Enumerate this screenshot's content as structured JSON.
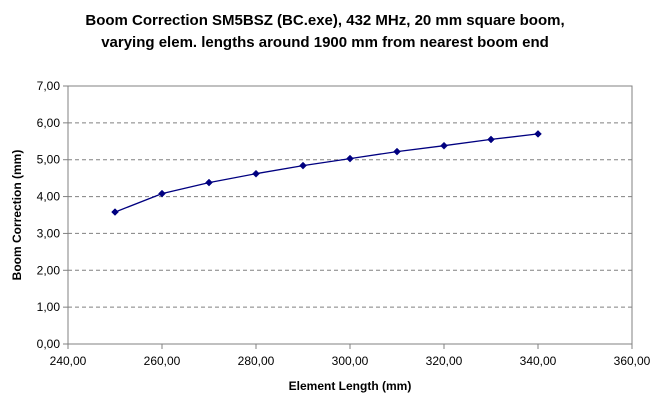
{
  "chart_data": {
    "type": "line",
    "title_lines": [
      "Boom Correction SM5BSZ (BC.exe), 432 MHz, 20 mm square boom,",
      "varying elem. lengths around 1900 mm from nearest boom end"
    ],
    "xlabel": "Element Length (mm)",
    "ylabel": "Boom Correction (mm)",
    "xlim": [
      240,
      360
    ],
    "ylim": [
      0,
      7
    ],
    "x_ticks": [
      "240,00",
      "260,00",
      "280,00",
      "300,00",
      "320,00",
      "340,00",
      "360,00"
    ],
    "y_ticks": [
      "0,00",
      "1,00",
      "2,00",
      "3,00",
      "4,00",
      "5,00",
      "6,00",
      "7,00"
    ],
    "grid": "horizontal dashed",
    "series": [
      {
        "color": "#000080",
        "x": [
          250,
          260,
          270,
          280,
          290,
          300,
          310,
          320,
          330,
          340
        ],
        "y": [
          3.58,
          4.08,
          4.38,
          4.62,
          4.84,
          5.03,
          5.22,
          5.38,
          5.55,
          5.7
        ]
      }
    ]
  }
}
